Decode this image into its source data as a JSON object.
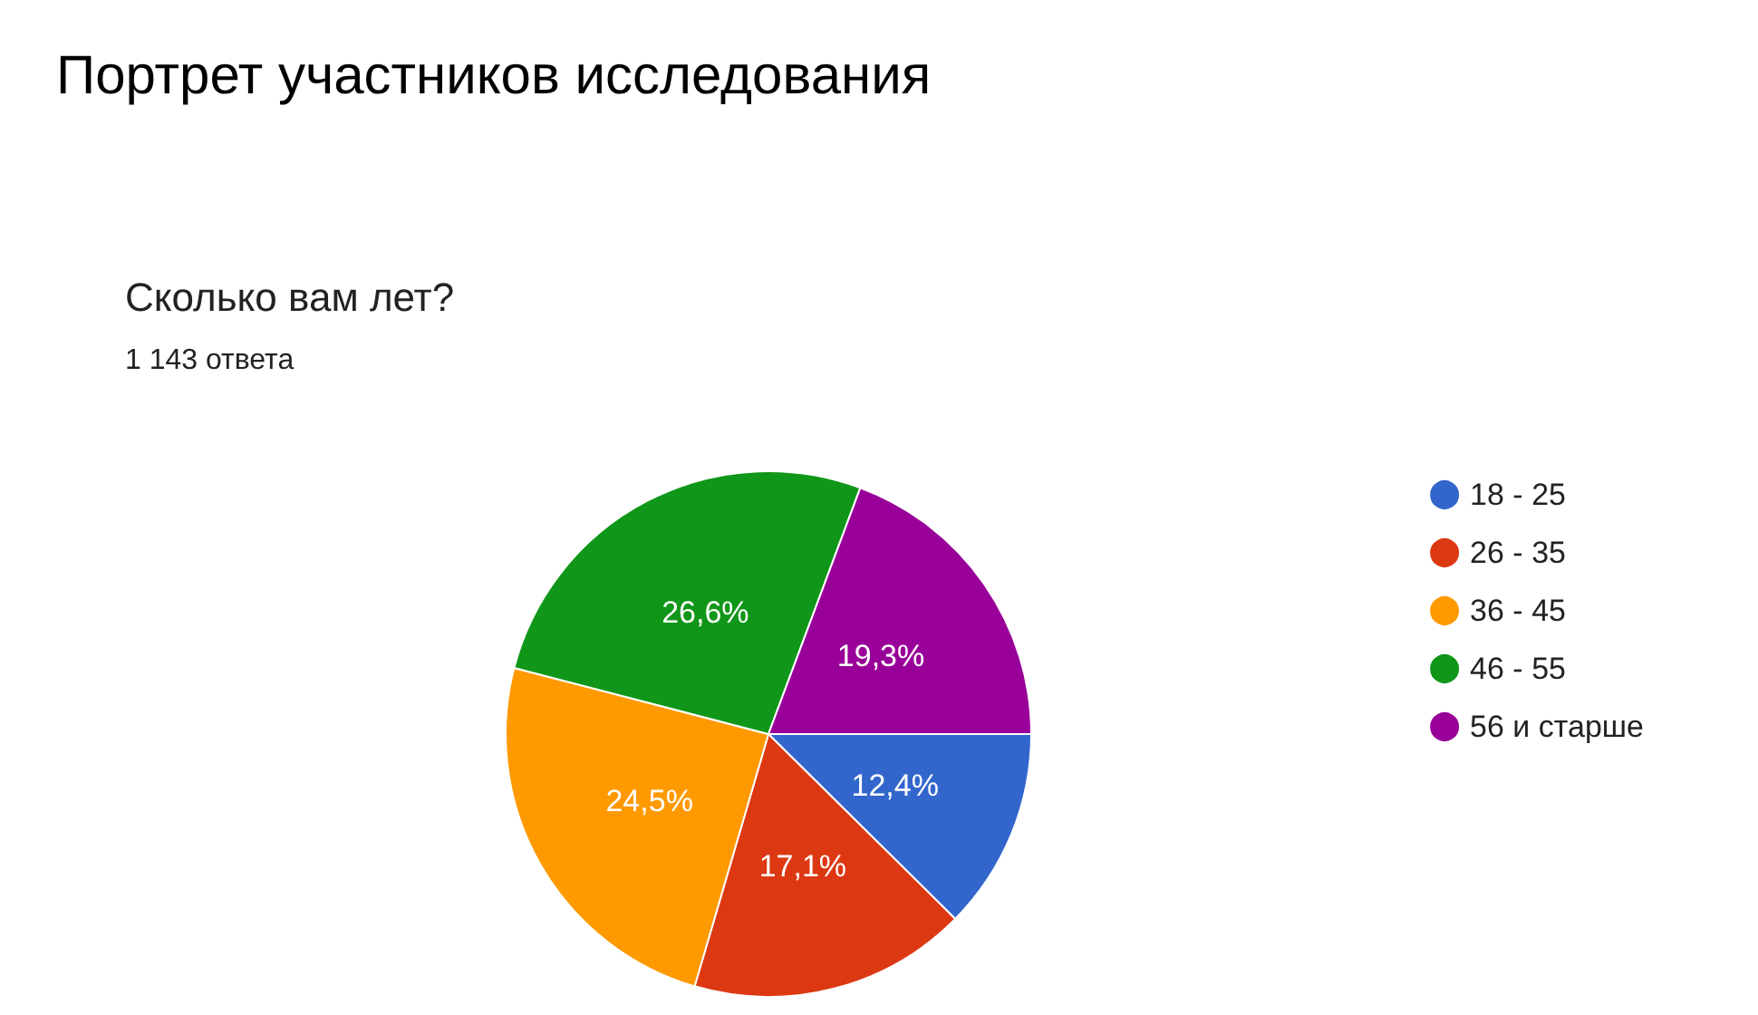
{
  "chart_data": {
    "type": "pie",
    "title": "Портрет участников исследования",
    "subtitle": "Сколько вам лет?",
    "annotations": [
      "1 143 ответа"
    ],
    "categories": [
      "18 - 25",
      "26 - 35",
      "36 - 45",
      "46 - 55",
      "56 и старше"
    ],
    "values": [
      12.4,
      17.1,
      24.5,
      26.6,
      19.3
    ],
    "colors": [
      "#3366cc",
      "#dc3912",
      "#ff9900",
      "#109618",
      "#990099"
    ],
    "value_labels": [
      "12,4%",
      "17,1%",
      "24,5%",
      "26,6%",
      "19,3%"
    ],
    "legend": "right"
  }
}
